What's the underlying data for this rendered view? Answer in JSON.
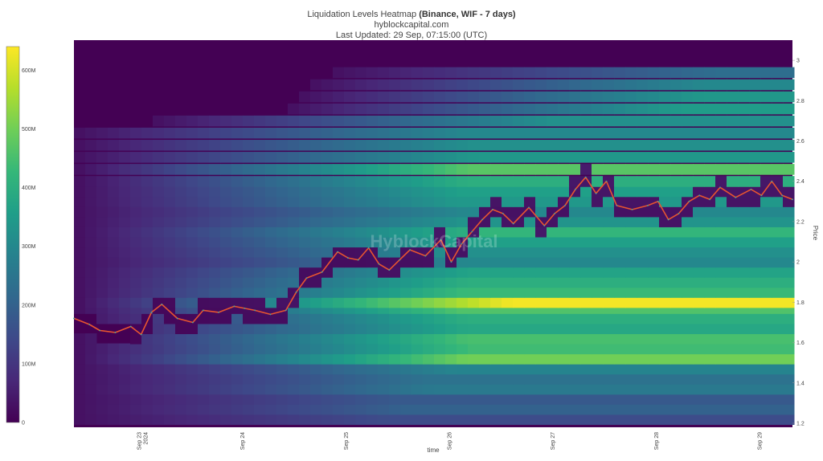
{
  "title": {
    "prefix": "Liquidation Levels Heatmap ",
    "bold": "(Binance, WIF - 7 days)",
    "site": "hyblockcapital.com",
    "updated": "Last Updated: 29 Sep, 07:15:00 (UTC)"
  },
  "watermark": "HyblockCapital",
  "colors": {
    "scale": [
      "#440154",
      "#482878",
      "#3e4989",
      "#31688e",
      "#26828e",
      "#1f9e89",
      "#35b779",
      "#6ece58",
      "#b5de2b",
      "#fde725"
    ],
    "price_line": "#e8552f"
  },
  "chart_data": {
    "type": "heatmap",
    "xlabel": "time",
    "ylabel": "Price",
    "ylim": [
      1.18,
      3.1
    ],
    "x_ticks": [
      {
        "pos": 23,
        "label": "Sep 23",
        "sub": "2024"
      },
      {
        "pos": 24,
        "label": "Sep 24"
      },
      {
        "pos": 25,
        "label": "Sep 25"
      },
      {
        "pos": 26,
        "label": "Sep 26"
      },
      {
        "pos": 27,
        "label": "Sep 27"
      },
      {
        "pos": 28,
        "label": "Sep 28"
      },
      {
        "pos": 29,
        "label": "Sep 29"
      }
    ],
    "xlim": [
      22.35,
      29.3
    ],
    "y_ticks": [
      1.2,
      1.4,
      1.6,
      1.8,
      2,
      2.2,
      2.4,
      2.6,
      2.8,
      3
    ],
    "colorbar": {
      "range": [
        0,
        640
      ],
      "ticks": [
        {
          "v": 0,
          "label": "0"
        },
        {
          "v": 100,
          "label": "100M"
        },
        {
          "v": 200,
          "label": "200M"
        },
        {
          "v": 300,
          "label": "300M"
        },
        {
          "v": 400,
          "label": "400M"
        },
        {
          "v": 500,
          "label": "500M"
        },
        {
          "v": 600,
          "label": "600M"
        }
      ]
    },
    "bands": [
      {
        "y": 1.22,
        "growth": 0.45,
        "max": 150
      },
      {
        "y": 1.27,
        "growth": 0.6,
        "max": 200
      },
      {
        "y": 1.32,
        "growth": 0.55,
        "max": 180
      },
      {
        "y": 1.37,
        "growth": 0.75,
        "max": 260
      },
      {
        "y": 1.42,
        "growth": 0.7,
        "max": 240
      },
      {
        "y": 1.47,
        "growth": 0.8,
        "max": 290
      },
      {
        "y": 1.52,
        "growth": 1.4,
        "max": 500
      },
      {
        "y": 1.57,
        "growth": 1.2,
        "max": 440
      },
      {
        "y": 1.62,
        "growth": 1.25,
        "max": 450
      },
      {
        "y": 1.67,
        "growth": 1.05,
        "max": 380
      },
      {
        "y": 1.72,
        "growth": 1.1,
        "max": 400
      },
      {
        "y": 1.77,
        "growth": 1.3,
        "max": 460
      },
      {
        "y": 1.8,
        "growth": 1.6,
        "max": 630
      },
      {
        "y": 1.85,
        "growth": 1.2,
        "max": 430
      },
      {
        "y": 1.9,
        "growth": 1.1,
        "max": 400
      },
      {
        "y": 1.95,
        "growth": 1.0,
        "max": 370
      },
      {
        "y": 2.0,
        "growth": 0.8,
        "max": 300
      },
      {
        "y": 2.05,
        "growth": 0.9,
        "max": 320
      },
      {
        "y": 2.1,
        "growth": 1.0,
        "max": 360
      },
      {
        "y": 2.15,
        "growth": 1.1,
        "max": 420
      },
      {
        "y": 2.2,
        "growth": 0.9,
        "max": 330
      },
      {
        "y": 2.25,
        "growth": 0.8,
        "max": 300
      },
      {
        "y": 2.3,
        "growth": 0.95,
        "max": 340
      },
      {
        "y": 2.35,
        "growth": 1.0,
        "max": 360
      },
      {
        "y": 2.4,
        "growth": 1.1,
        "max": 400
      },
      {
        "y": 2.46,
        "growth": 1.3,
        "max": 470
      },
      {
        "y": 2.52,
        "growth": 0.9,
        "max": 340
      },
      {
        "y": 2.58,
        "growth": 0.85,
        "max": 320
      },
      {
        "y": 2.64,
        "growth": 0.8,
        "max": 300
      },
      {
        "y": 2.7,
        "growth": 0.85,
        "max": 320
      },
      {
        "y": 2.76,
        "growth": 0.95,
        "max": 350
      },
      {
        "y": 2.82,
        "growth": 0.9,
        "max": 340
      },
      {
        "y": 2.88,
        "growth": 0.8,
        "max": 300
      },
      {
        "y": 2.94,
        "growth": 0.6,
        "max": 230
      }
    ],
    "price": {
      "x": [
        22.35,
        22.5,
        22.6,
        22.75,
        22.9,
        23.0,
        23.1,
        23.2,
        23.35,
        23.5,
        23.6,
        23.75,
        23.9,
        24.0,
        24.1,
        24.25,
        24.4,
        24.5,
        24.6,
        24.75,
        24.9,
        25.0,
        25.1,
        25.2,
        25.3,
        25.4,
        25.5,
        25.6,
        25.75,
        25.9,
        26.0,
        26.1,
        26.2,
        26.3,
        26.4,
        26.5,
        26.6,
        26.75,
        26.9,
        27.0,
        27.1,
        27.2,
        27.3,
        27.4,
        27.5,
        27.6,
        27.75,
        27.9,
        28.0,
        28.1,
        28.2,
        28.3,
        28.4,
        28.5,
        28.6,
        28.75,
        28.9,
        29.0,
        29.1,
        29.2,
        29.3
      ],
      "y": [
        1.72,
        1.69,
        1.66,
        1.65,
        1.68,
        1.64,
        1.75,
        1.79,
        1.72,
        1.7,
        1.76,
        1.75,
        1.78,
        1.77,
        1.76,
        1.74,
        1.76,
        1.85,
        1.92,
        1.95,
        2.05,
        2.02,
        2.01,
        2.07,
        1.99,
        1.96,
        2.01,
        2.06,
        2.03,
        2.11,
        2.0,
        2.09,
        2.15,
        2.21,
        2.26,
        2.24,
        2.19,
        2.27,
        2.18,
        2.24,
        2.28,
        2.36,
        2.42,
        2.34,
        2.4,
        2.28,
        2.26,
        2.28,
        2.3,
        2.21,
        2.24,
        2.3,
        2.33,
        2.31,
        2.37,
        2.32,
        2.36,
        2.33,
        2.4,
        2.33,
        2.31
      ]
    }
  }
}
